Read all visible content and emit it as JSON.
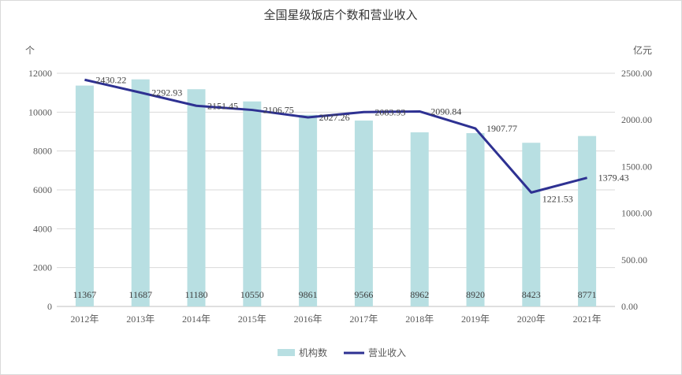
{
  "chart_data": {
    "type": "bar+line",
    "title": "全国星级饭店个数和营业收入",
    "categories": [
      "2012年",
      "2013年",
      "2014年",
      "2015年",
      "2016年",
      "2017年",
      "2018年",
      "2019年",
      "2020年",
      "2021年"
    ],
    "series": [
      {
        "name": "机构数",
        "type": "bar",
        "axis": "left",
        "color": "#b8dfe2",
        "values": [
          11367,
          11687,
          11180,
          10550,
          9861,
          9566,
          8962,
          8920,
          8423,
          8771
        ],
        "labels": [
          "11367",
          "11687",
          "11180",
          "10550",
          "9861",
          "9566",
          "8962",
          "8920",
          "8423",
          "8771"
        ]
      },
      {
        "name": "营业收入",
        "type": "line",
        "axis": "right",
        "color": "#2e3192",
        "values": [
          2430.22,
          2292.93,
          2151.45,
          2106.75,
          2027.26,
          2083.93,
          2090.84,
          1907.77,
          1221.53,
          1379.43
        ],
        "labels": [
          "2430.22",
          "2292.93",
          "2151.45",
          "2106.75",
          "2027.26",
          "2083.93",
          "2090.84",
          "1907.77",
          "1221.53",
          "1379.43"
        ]
      }
    ],
    "left_axis": {
      "unit": "个",
      "range": [
        0,
        12000
      ],
      "ticks": [
        "0",
        "2000",
        "4000",
        "6000",
        "8000",
        "10000",
        "12000"
      ]
    },
    "right_axis": {
      "unit": "亿元",
      "range": [
        0,
        2500
      ],
      "ticks": [
        "0.00",
        "500.00",
        "1000.00",
        "1500.00",
        "2000.00",
        "2500.00"
      ]
    },
    "grid": true,
    "legend_placement": "bottom"
  }
}
